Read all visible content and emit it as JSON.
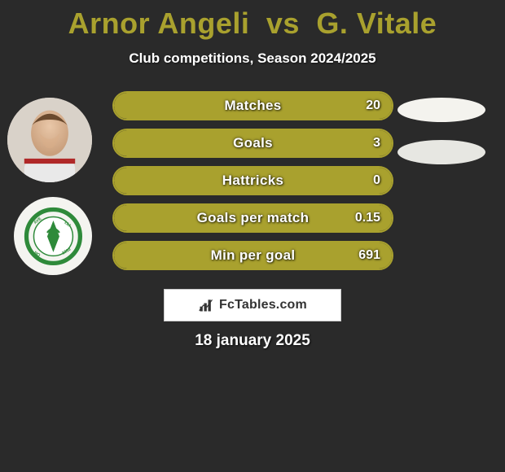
{
  "title": {
    "player1": "Arnor Angeli",
    "vs": "vs",
    "player2": "G. Vitale",
    "color": "#a9a12e"
  },
  "subtitle": "Club competitions, Season 2024/2025",
  "colors": {
    "background": "#2a2a2a",
    "bar_fill": "#a9a12e",
    "bar_border": "#a9a12e",
    "bar_empty": "#2a2a2a",
    "text": "#ffffff",
    "blob1": "#f4f3ee",
    "blob2": "#e7e7e2"
  },
  "stats": [
    {
      "label": "Matches",
      "value": "20",
      "fill_pct": 100
    },
    {
      "label": "Goals",
      "value": "3",
      "fill_pct": 100
    },
    {
      "label": "Hattricks",
      "value": "0",
      "fill_pct": 100
    },
    {
      "label": "Goals per match",
      "value": "0.15",
      "fill_pct": 100
    },
    {
      "label": "Min per goal",
      "value": "691",
      "fill_pct": 100
    }
  ],
  "right_blobs": [
    {
      "color": "#f4f3ee"
    },
    {
      "color": "#e7e7e2"
    }
  ],
  "footer": {
    "brand_prefix": "Fc",
    "brand_suffix": "Tables.com",
    "icon": "bar-chart-icon"
  },
  "date": "18 january 2025",
  "club_logo": {
    "ring_color": "#2e8a3a",
    "inner_bg": "#ffffff"
  }
}
